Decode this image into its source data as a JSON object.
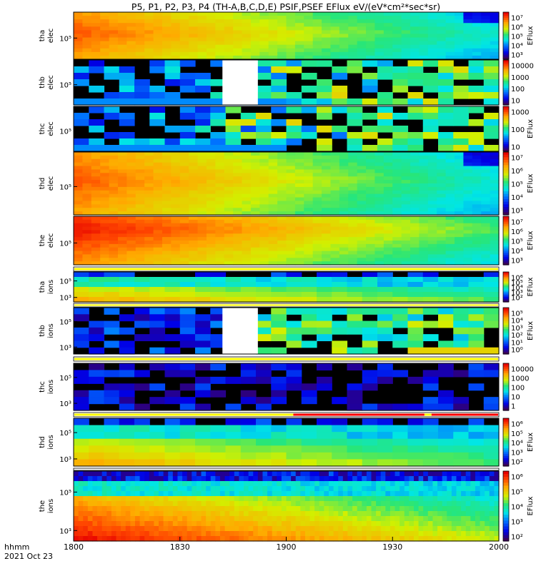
{
  "figure": {
    "title": "P5, P1, P2, P3, P4 (TH-A,B,C,D,E) PSIF,PSEF EFlux eV/(eV*cm²*sec*sr)",
    "time_axis_label": "hhmm",
    "date_label": "2021 Oct 23"
  },
  "chart_data": {
    "type": "heatmap",
    "x_axis": {
      "range": [
        "1800",
        "2000"
      ],
      "ticks": [
        "1800",
        "1830",
        "1900",
        "1930",
        "2000"
      ]
    },
    "colorbar_label": "EFlux",
    "panels": [
      {
        "id": "tha-elec",
        "probe": "tha",
        "species": "elec",
        "y_ticks": [
          "10⁵"
        ],
        "cb_ticks": [
          "10⁷",
          "10⁶",
          "10⁵",
          "10⁴",
          "10³"
        ],
        "cb_label": "EFlux",
        "style": "dense_hot",
        "flag": "none"
      },
      {
        "id": "thb-elec",
        "probe": "thb",
        "species": "elec",
        "y_ticks": [
          "10⁵"
        ],
        "cb_ticks": [
          "10000",
          "1000",
          "100",
          "10"
        ],
        "cb_label": "",
        "style": "sparse",
        "gap": [
          "1842",
          "1852"
        ],
        "flag": "none"
      },
      {
        "id": "thc-elec",
        "probe": "thc",
        "species": "elec",
        "y_ticks": [
          "10⁵"
        ],
        "cb_ticks": [
          "1000",
          "100",
          "10"
        ],
        "cb_label": "EFlux",
        "style": "sparse",
        "flag": "none"
      },
      {
        "id": "thd-elec",
        "probe": "thd",
        "species": "elec",
        "y_ticks": [
          "10⁵"
        ],
        "cb_ticks": [
          "10⁷",
          "10⁶",
          "10⁵",
          "10⁴",
          "10³"
        ],
        "cb_label": "EFlux",
        "style": "dense_hot",
        "flag": "none"
      },
      {
        "id": "the-elec",
        "probe": "the",
        "species": "elec",
        "y_ticks": [
          "10⁵"
        ],
        "cb_ticks": [
          "10⁷",
          "10⁶",
          "10⁵",
          "10⁴",
          "10³"
        ],
        "cb_label": "EFlux",
        "style": "dense_hotter",
        "flag": "yellow"
      },
      {
        "id": "tha-ions",
        "probe": "tha",
        "species": "ions",
        "y_ticks": [
          "10⁵",
          "10³"
        ],
        "cb_ticks": [
          "10⁶",
          "10⁵",
          "10⁴",
          "10³",
          "10²"
        ],
        "cb_label": "EFlux",
        "style": "ions_medium",
        "flag": "yellow"
      },
      {
        "id": "thb-ions",
        "probe": "thb",
        "species": "ions",
        "y_ticks": [
          "10⁵",
          "10³"
        ],
        "cb_ticks": [
          "10⁵",
          "10⁴",
          "10³",
          "10²",
          "10¹",
          "10⁰"
        ],
        "cb_label": "EFlux",
        "style": "ions_sparse",
        "gap": [
          "1842",
          "1852"
        ],
        "flag": "yellow"
      },
      {
        "id": "thc-ions",
        "probe": "thc",
        "species": "ions",
        "y_ticks": [
          "10⁵",
          "10³"
        ],
        "cb_ticks": [
          "10000",
          "1000",
          "100",
          "10",
          "1"
        ],
        "cb_label": "",
        "style": "ions_very_sparse",
        "flag": "yellow_red"
      },
      {
        "id": "thd-ions",
        "probe": "thd",
        "species": "ions",
        "y_ticks": [
          "10⁵",
          "10³"
        ],
        "cb_ticks": [
          "10⁶",
          "10⁵",
          "10⁴",
          "10³",
          "10²"
        ],
        "cb_label": "EFlux",
        "style": "ions_medium",
        "flag": "red"
      },
      {
        "id": "the-ions",
        "probe": "the",
        "species": "ions",
        "y_ticks": [
          "10⁵",
          "10³"
        ],
        "cb_ticks": [
          "10⁶",
          "10⁵",
          "10⁴",
          "10³",
          "10²"
        ],
        "cb_label": "EFlux",
        "style": "ions_dense",
        "flag": "none"
      }
    ]
  }
}
